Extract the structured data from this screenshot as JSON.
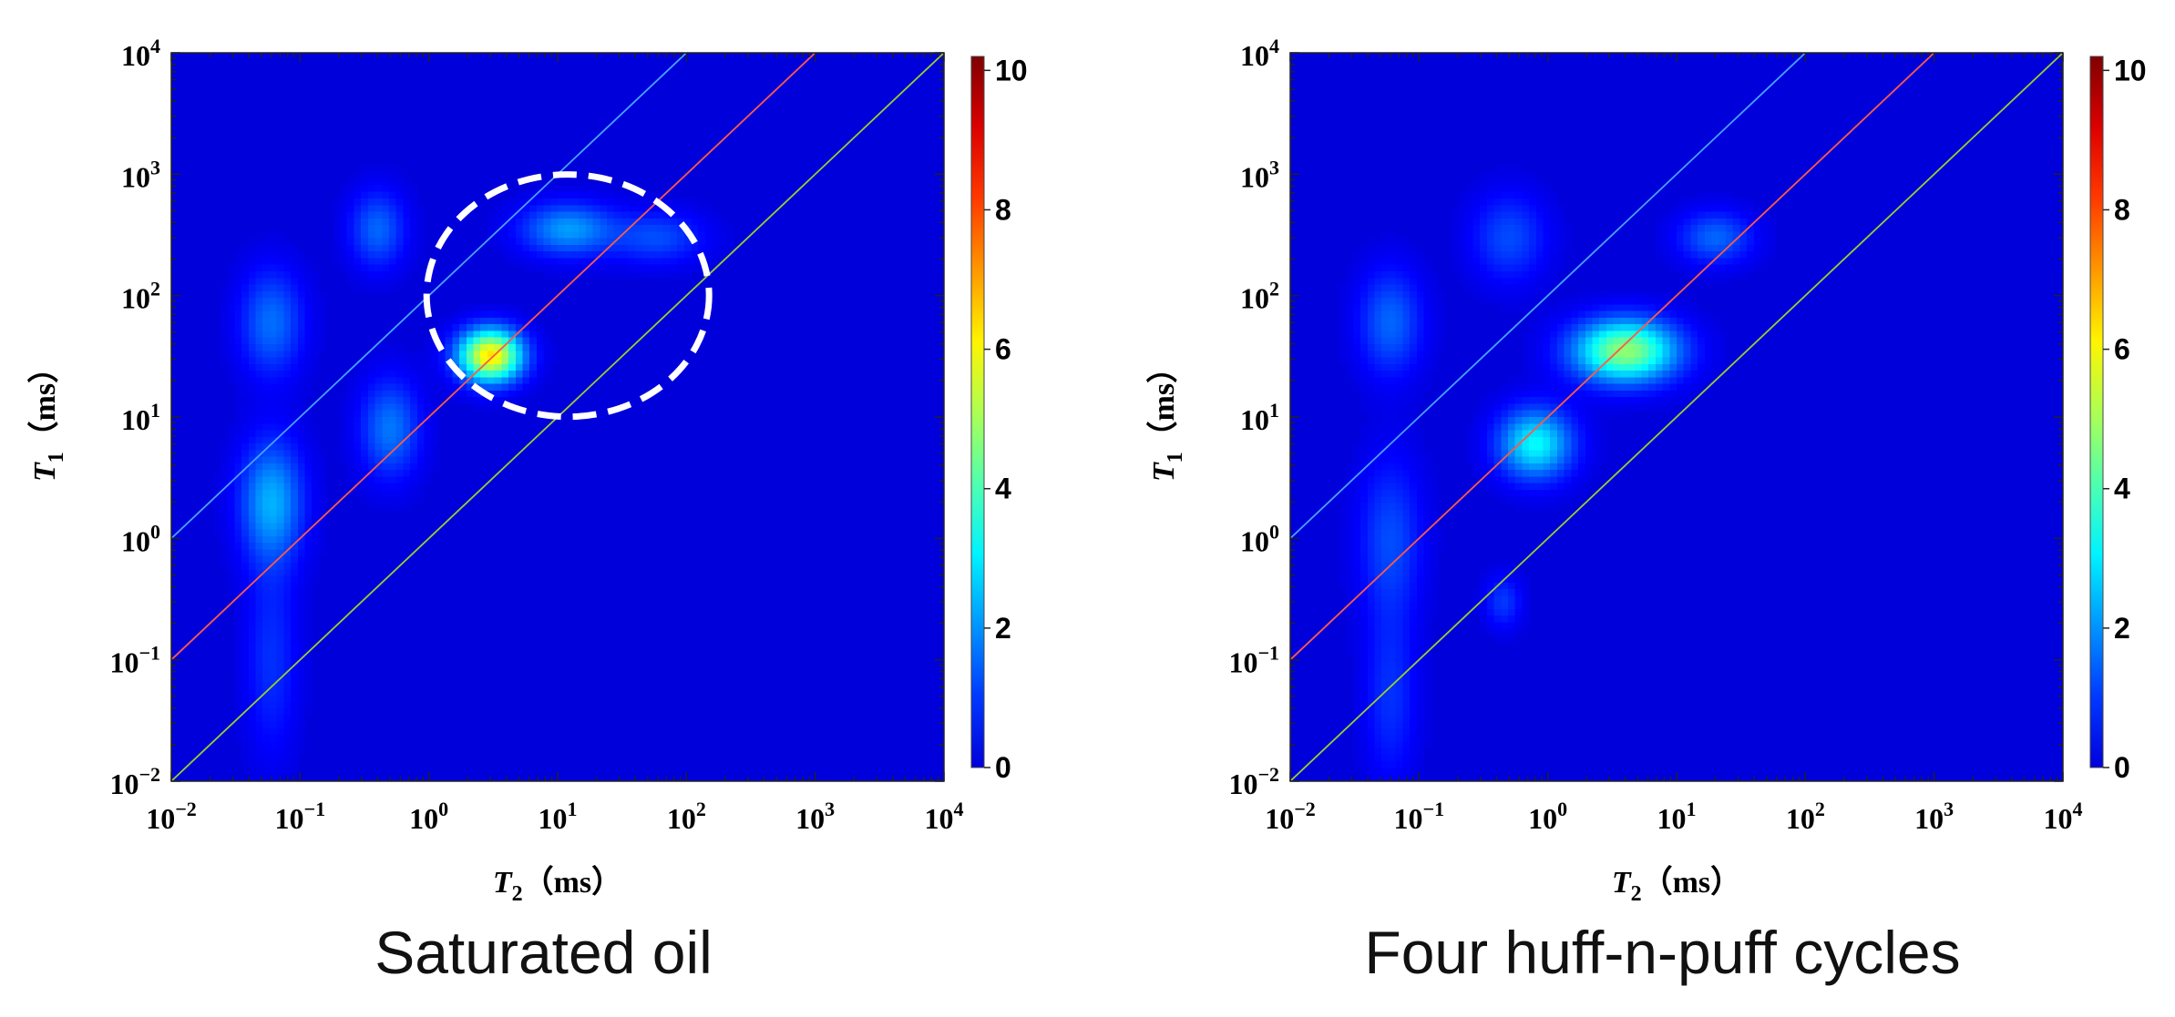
{
  "chart_data": [
    {
      "type": "heatmap",
      "panel": "left",
      "caption": "Saturated oil",
      "xaxis": {
        "symbol": "T",
        "subscript": "2",
        "unit": "（ms）",
        "scale": "log",
        "range": [
          0.01,
          10000
        ],
        "ticks": [
          {
            "base": "10",
            "exp": "−2"
          },
          {
            "base": "10",
            "exp": "−1"
          },
          {
            "base": "10",
            "exp": "0"
          },
          {
            "base": "10",
            "exp": "1"
          },
          {
            "base": "10",
            "exp": "2"
          },
          {
            "base": "10",
            "exp": "3"
          },
          {
            "base": "10",
            "exp": "4"
          }
        ]
      },
      "yaxis": {
        "symbol": "T",
        "subscript": "1",
        "unit": "（ms）",
        "scale": "log",
        "range": [
          0.01,
          10000
        ],
        "ticks": [
          {
            "base": "10",
            "exp": "−2"
          },
          {
            "base": "10",
            "exp": "−1"
          },
          {
            "base": "10",
            "exp": "0"
          },
          {
            "base": "10",
            "exp": "1"
          },
          {
            "base": "10",
            "exp": "2"
          },
          {
            "base": "10",
            "exp": "3"
          },
          {
            "base": "10",
            "exp": "4"
          }
        ]
      },
      "colorbar": {
        "range": [
          0,
          10.2
        ],
        "ticks": [
          "0",
          "2",
          "4",
          "6",
          "8",
          "10"
        ],
        "colormap": "jet"
      },
      "reference_lines": [
        {
          "ratio_T1_T2": 100,
          "color": "#4aa3ff"
        },
        {
          "ratio_T1_T2": 10,
          "color": "#ff5a4a"
        },
        {
          "ratio_T1_T2": 1,
          "color": "#9acd32"
        }
      ],
      "highlight_ellipse": {
        "center_T2": 12,
        "center_T1": 100,
        "style": "dashed",
        "color": "#ffffff"
      },
      "peaks": [
        {
          "T2": 0.06,
          "T1": 2.0,
          "amplitude": 2.3,
          "sigma_x": 0.17,
          "sigma_y": 0.35
        },
        {
          "T2": 0.06,
          "T1": 60,
          "amplitude": 1.6,
          "sigma_x": 0.17,
          "sigma_y": 0.3
        },
        {
          "T2": 0.06,
          "T1": 0.1,
          "amplitude": 0.9,
          "sigma_x": 0.14,
          "sigma_y": 0.55
        },
        {
          "T2": 0.4,
          "T1": 350,
          "amplitude": 1.5,
          "sigma_x": 0.15,
          "sigma_y": 0.22
        },
        {
          "T2": 0.5,
          "T1": 8,
          "amplitude": 1.7,
          "sigma_x": 0.16,
          "sigma_y": 0.28
        },
        {
          "T2": 3,
          "T1": 32,
          "amplitude": 6.3,
          "sigma_x": 0.17,
          "sigma_y": 0.15
        },
        {
          "T2": 12,
          "T1": 350,
          "amplitude": 2.1,
          "sigma_x": 0.25,
          "sigma_y": 0.15
        },
        {
          "T2": 60,
          "T1": 300,
          "amplitude": 1.2,
          "sigma_x": 0.25,
          "sigma_y": 0.15
        }
      ]
    },
    {
      "type": "heatmap",
      "panel": "right",
      "caption": "Four huff-n-puff cycles",
      "xaxis": {
        "symbol": "T",
        "subscript": "2",
        "unit": "（ms）",
        "scale": "log",
        "range": [
          0.01,
          10000
        ],
        "ticks": [
          {
            "base": "10",
            "exp": "−2"
          },
          {
            "base": "10",
            "exp": "−1"
          },
          {
            "base": "10",
            "exp": "0"
          },
          {
            "base": "10",
            "exp": "1"
          },
          {
            "base": "10",
            "exp": "2"
          },
          {
            "base": "10",
            "exp": "3"
          },
          {
            "base": "10",
            "exp": "4"
          }
        ]
      },
      "yaxis": {
        "symbol": "T",
        "subscript": "1",
        "unit": "（ms）",
        "scale": "log",
        "range": [
          0.01,
          10000
        ],
        "ticks": [
          {
            "base": "10",
            "exp": "−2"
          },
          {
            "base": "10",
            "exp": "−1"
          },
          {
            "base": "10",
            "exp": "0"
          },
          {
            "base": "10",
            "exp": "1"
          },
          {
            "base": "10",
            "exp": "2"
          },
          {
            "base": "10",
            "exp": "3"
          },
          {
            "base": "10",
            "exp": "4"
          }
        ]
      },
      "colorbar": {
        "range": [
          0,
          10.2
        ],
        "ticks": [
          "0",
          "2",
          "4",
          "6",
          "8",
          "10"
        ],
        "colormap": "jet"
      },
      "reference_lines": [
        {
          "ratio_T1_T2": 100,
          "color": "#4aa3ff"
        },
        {
          "ratio_T1_T2": 10,
          "color": "#ff5a4a"
        },
        {
          "ratio_T1_T2": 1,
          "color": "#9acd32"
        }
      ],
      "peaks": [
        {
          "T2": 0.06,
          "T1": 60,
          "amplitude": 1.5,
          "sigma_x": 0.17,
          "sigma_y": 0.3
        },
        {
          "T2": 0.06,
          "T1": 1.0,
          "amplitude": 1.2,
          "sigma_x": 0.17,
          "sigma_y": 0.45
        },
        {
          "T2": 0.06,
          "T1": 0.05,
          "amplitude": 0.9,
          "sigma_x": 0.14,
          "sigma_y": 0.5
        },
        {
          "T2": 0.45,
          "T1": 0.3,
          "amplitude": 1.0,
          "sigma_x": 0.1,
          "sigma_y": 0.15
        },
        {
          "T2": 0.5,
          "T1": 300,
          "amplitude": 1.2,
          "sigma_x": 0.2,
          "sigma_y": 0.25
        },
        {
          "T2": 0.8,
          "T1": 6,
          "amplitude": 3.2,
          "sigma_x": 0.2,
          "sigma_y": 0.2
        },
        {
          "T2": 4,
          "T1": 35,
          "amplitude": 4.8,
          "sigma_x": 0.28,
          "sigma_y": 0.18
        },
        {
          "T2": 20,
          "T1": 300,
          "amplitude": 1.5,
          "sigma_x": 0.2,
          "sigma_y": 0.15
        }
      ]
    }
  ]
}
